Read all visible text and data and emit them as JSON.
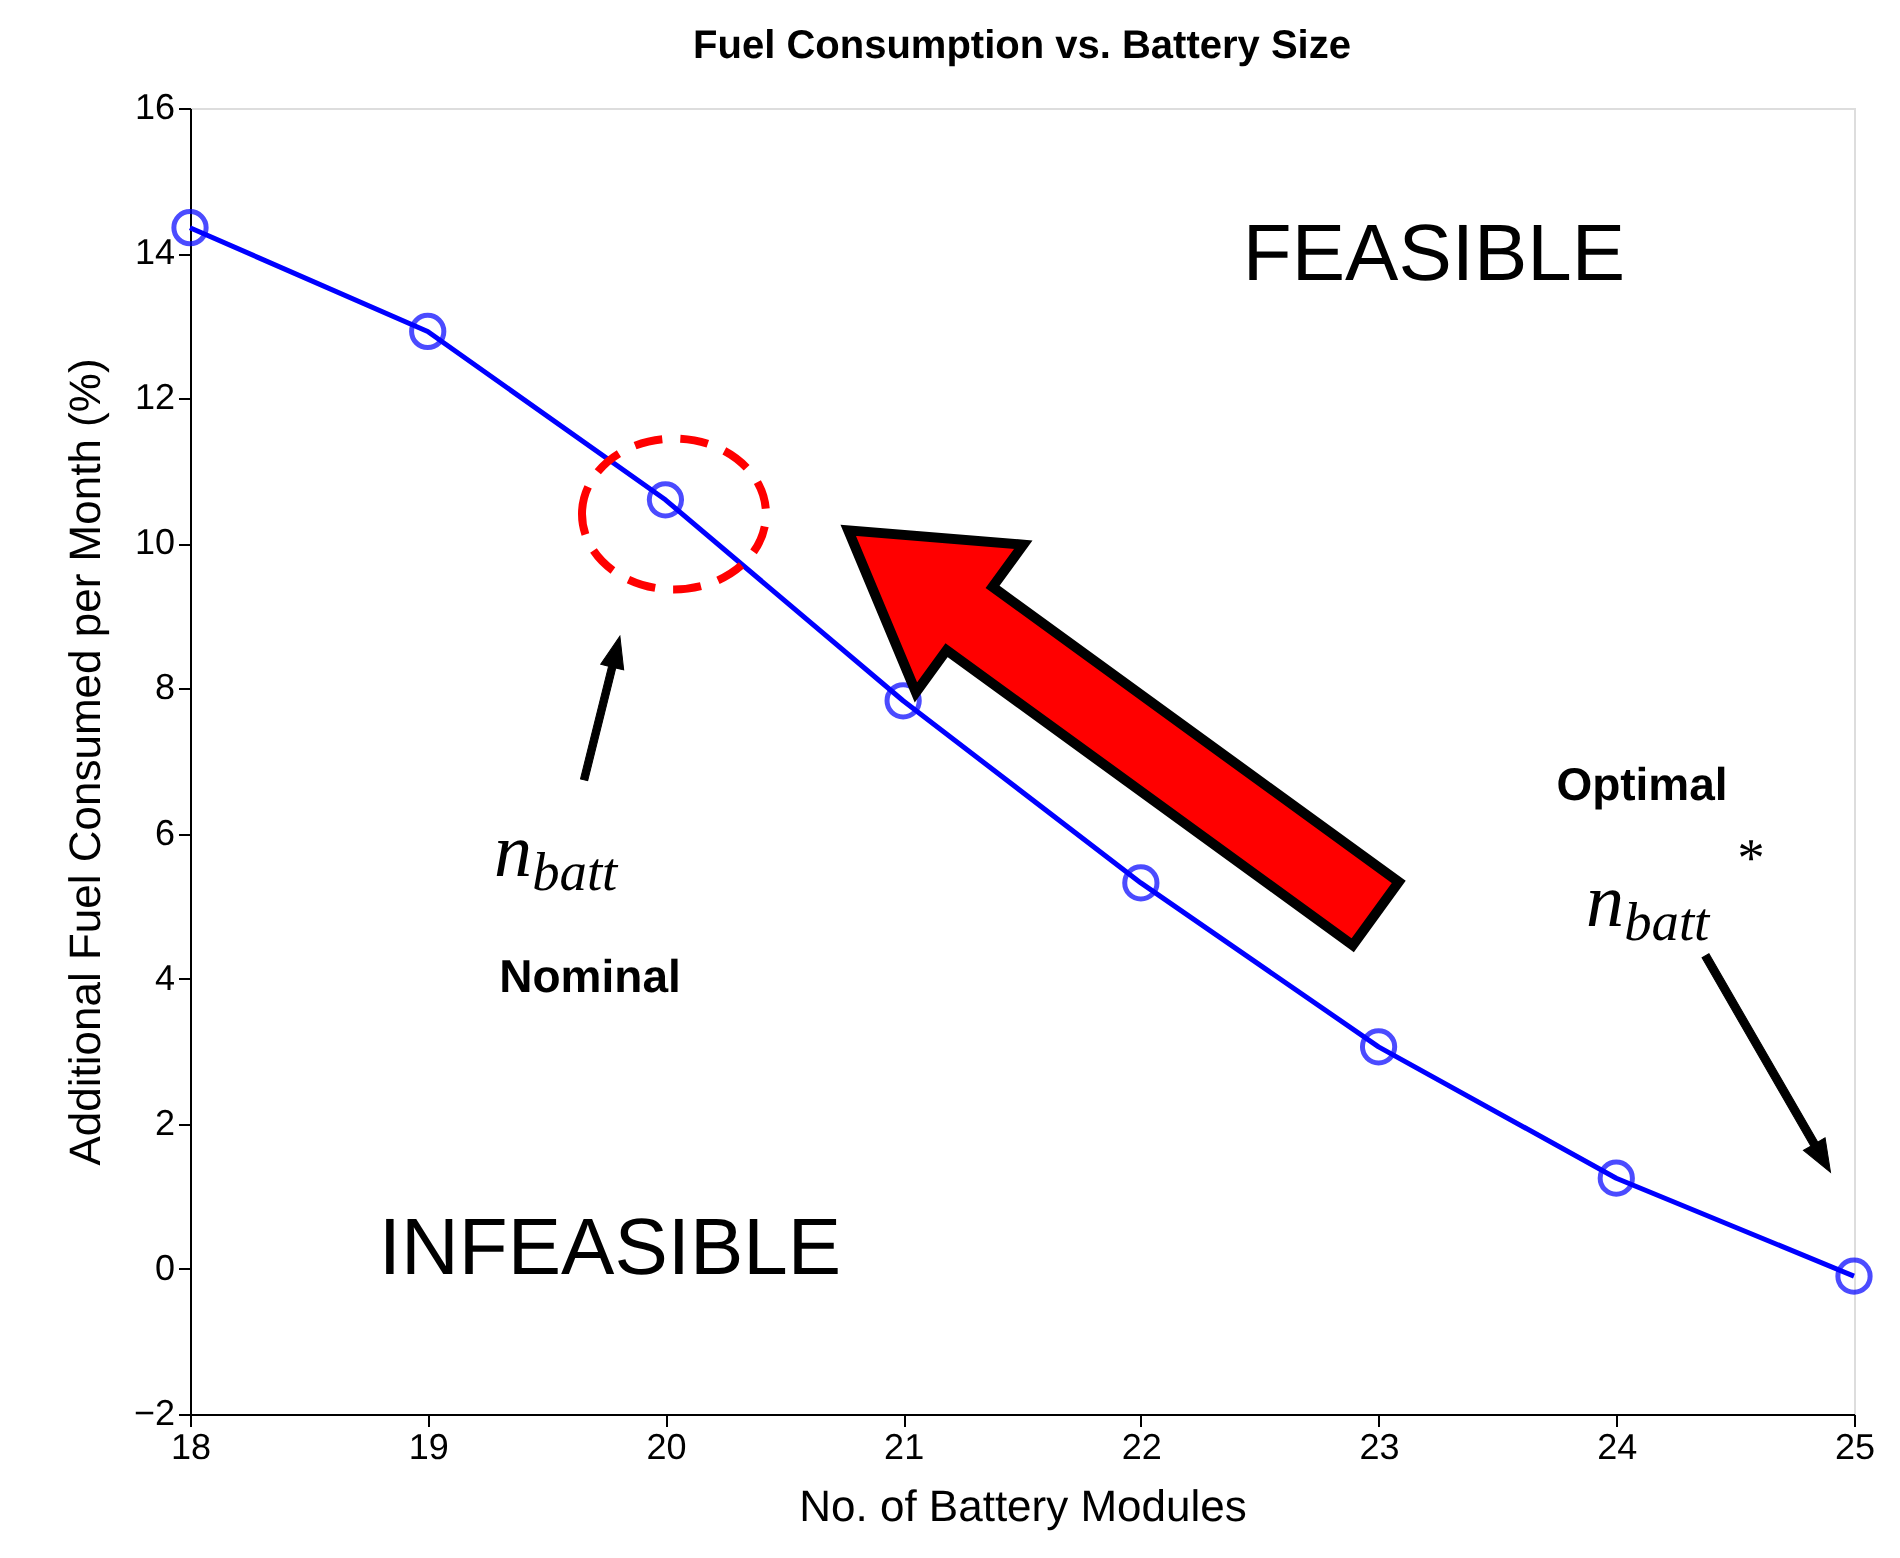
{
  "chart_data": {
    "type": "line",
    "title": "Fuel Consumption vs. Battery Size",
    "xlabel": "No. of Battery Modules",
    "ylabel": "Additional Fuel Consumed per Month (%)",
    "x": [
      18,
      19,
      20,
      21,
      22,
      23,
      24,
      25
    ],
    "series": [
      {
        "color": "#0000ff",
        "values": [
          14.35,
          12.92,
          10.6,
          7.83,
          5.32,
          3.06,
          1.25,
          -0.1
        ]
      }
    ],
    "xlim": [
      18,
      25
    ],
    "xticks": [
      18,
      19,
      20,
      21,
      22,
      23,
      24,
      25
    ],
    "ylim": [
      -2,
      16
    ],
    "yticks": [
      -2,
      0,
      2,
      4,
      6,
      8,
      10,
      12,
      14,
      16
    ],
    "marker": "circle",
    "line_style": "solid",
    "grid": false,
    "annotations": [
      "FEASIBLE",
      "INFEASIBLE",
      "n$_{batt}$",
      "Nominal",
      "Optimal",
      "n$_{batt}$$^{*}$"
    ]
  }
}
